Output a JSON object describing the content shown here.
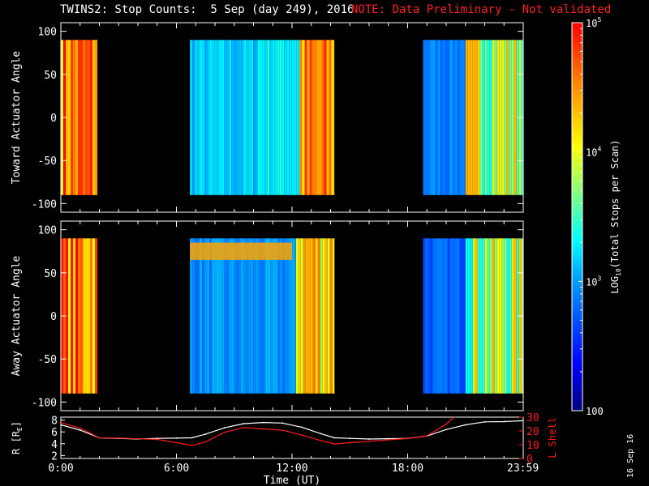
{
  "header": {
    "title": "TWINS2: Stop Counts:  5 Sep (day 249), 2016",
    "note": "NOTE: Data Preliminary - Not validated",
    "note_color": "#ff2020"
  },
  "date_stamp": "16 Sep 16",
  "chart_data": [
    {
      "type": "heatmap",
      "ylabel": "Toward Actuator Angle",
      "ylim": [
        -110,
        110
      ],
      "yticks": [
        "100",
        "50",
        "0",
        "-50",
        "-100"
      ],
      "ytick_values": [
        100,
        50,
        0,
        -50,
        -100
      ],
      "xlim": [
        0,
        24
      ],
      "data_range_y": [
        -90,
        90
      ],
      "segments": [
        {
          "start_hr": 0.0,
          "end_hr": 1.9,
          "log10_counts": 4.55,
          "variability": "high"
        },
        {
          "start_hr": 6.7,
          "end_hr": 10.2,
          "log10_counts": 3.15,
          "variability": "low"
        },
        {
          "start_hr": 10.2,
          "end_hr": 12.4,
          "log10_counts": 3.3,
          "variability": "low"
        },
        {
          "start_hr": 12.4,
          "end_hr": 14.2,
          "log10_counts": 4.4,
          "variability": "high"
        },
        {
          "start_hr": 18.8,
          "end_hr": 21.0,
          "log10_counts": 2.9,
          "variability": "low"
        },
        {
          "start_hr": 21.0,
          "end_hr": 24.0,
          "log10_counts": 3.9,
          "variability": "high"
        }
      ]
    },
    {
      "type": "heatmap",
      "ylabel": "Away Actuator Angle",
      "ylim": [
        -110,
        110
      ],
      "yticks": [
        "100",
        "50",
        "0",
        "-50",
        "-100"
      ],
      "ytick_values": [
        100,
        50,
        0,
        -50,
        -100
      ],
      "xlim": [
        0,
        24
      ],
      "data_range_y": [
        -90,
        90
      ],
      "segments": [
        {
          "start_hr": 0.0,
          "end_hr": 1.9,
          "log10_counts": 4.5,
          "variability": "high"
        },
        {
          "start_hr": 6.7,
          "end_hr": 12.2,
          "log10_counts": 2.95,
          "variability": "low"
        },
        {
          "start_hr": 12.2,
          "end_hr": 14.2,
          "log10_counts": 4.3,
          "variability": "high"
        },
        {
          "start_hr": 18.8,
          "end_hr": 21.0,
          "log10_counts": 2.75,
          "variability": "low"
        },
        {
          "start_hr": 21.0,
          "end_hr": 24.0,
          "log10_counts": 3.8,
          "variability": "high"
        }
      ],
      "high_angle_band": {
        "angle_range": [
          65,
          85
        ],
        "x_range_hr": [
          6.7,
          12.0
        ],
        "log10_counts": 4.4
      }
    },
    {
      "type": "line",
      "ylabel": "R [R",
      "ylabel_sub": "E",
      "ylabel_end": "]",
      "ylabel2": "L Shell",
      "ylim": [
        1.5,
        8.5
      ],
      "yticks": [
        "8",
        "6",
        "4",
        "2"
      ],
      "ytick_values": [
        8,
        6,
        4,
        2
      ],
      "y2lim": [
        0,
        30
      ],
      "y2ticks": [
        "30",
        "20",
        "10",
        "0"
      ],
      "y2tick_values": [
        30,
        20,
        10,
        0
      ],
      "xlim": [
        0,
        24
      ],
      "xticks": [
        "0:00",
        "6:00",
        "12:00",
        "18:00",
        "23:59"
      ],
      "xtick_values": [
        0,
        6,
        12,
        18,
        23.983
      ],
      "xlabel": "Time (UT)",
      "series": [
        {
          "name": "R",
          "axis": "left",
          "color": "#ffffff",
          "x": [
            0,
            1,
            2,
            3,
            4,
            5,
            6,
            6.8,
            7.5,
            8.5,
            9.5,
            10.5,
            11.5,
            12.5,
            13.5,
            14.2,
            15,
            16,
            17,
            18,
            19,
            20,
            21,
            22,
            23,
            24
          ],
          "y": [
            7.2,
            6.3,
            5.0,
            4.9,
            4.8,
            4.9,
            4.95,
            5.0,
            5.6,
            6.7,
            7.4,
            7.6,
            7.5,
            6.8,
            5.7,
            5.0,
            4.9,
            4.8,
            4.85,
            4.9,
            5.3,
            6.4,
            7.2,
            7.7,
            7.75,
            7.9
          ]
        },
        {
          "name": "L Shell",
          "axis": "right",
          "color": "#ff1a1a",
          "x": [
            0,
            1,
            2,
            3,
            4,
            5,
            6,
            6.8,
            7.5,
            8.5,
            9.5,
            10.5,
            11.5,
            12.5,
            13.5,
            14.2,
            15,
            16,
            17,
            18,
            19,
            20,
            20.5
          ],
          "y": [
            26,
            22,
            15,
            14.8,
            14.3,
            13.8,
            11.5,
            9.5,
            12,
            19,
            22.5,
            21.5,
            20.5,
            17,
            13,
            10.5,
            11.5,
            12.5,
            13.5,
            14.5,
            16.5,
            25,
            31
          ]
        }
      ]
    }
  ],
  "colorbar": {
    "label_prefix": "LOG",
    "label_sub": "10",
    "label_rest": "(Total Stops per Scan)",
    "log10_range": [
      2,
      5
    ],
    "ticks": [
      {
        "label_base": "10",
        "label_exp": "5",
        "log10": 5
      },
      {
        "label_base": "10",
        "label_exp": "4",
        "log10": 4
      },
      {
        "label_base": "10",
        "label_exp": "3",
        "log10": 3
      },
      {
        "label_base": "100",
        "label_exp": "",
        "log10": 2
      }
    ]
  }
}
